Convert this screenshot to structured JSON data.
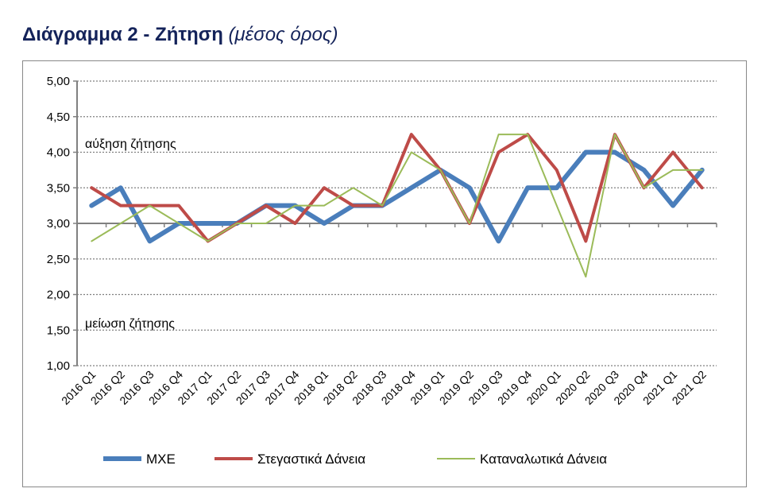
{
  "title": {
    "main": "Διάγραμμα 2 - Ζήτηση",
    "sub": "(μέσος όρος)",
    "color": "#14235a"
  },
  "chart_data": {
    "type": "line",
    "title": "Διάγραμμα 2 - Ζήτηση (μέσος όρος)",
    "categories": [
      "2016 Q1",
      "2016 Q2",
      "2016 Q3",
      "2016 Q4",
      "2017 Q1",
      "2017 Q2",
      "2017 Q3",
      "2017 Q4",
      "2018 Q1",
      "2018 Q2",
      "2018 Q3",
      "2018 Q4",
      "2019 Q1",
      "2019 Q2",
      "2019 Q3",
      "2019 Q4",
      "2020 Q1",
      "2020 Q2",
      "2020 Q3",
      "2020 Q4",
      "2021 Q1",
      "2021 Q2"
    ],
    "ylim": [
      1,
      5
    ],
    "yticks": [
      "1,00",
      "1,50",
      "2,00",
      "2,50",
      "3,00",
      "3,50",
      "4,00",
      "4,50",
      "5,00"
    ],
    "grid": true,
    "legend": "bottom",
    "annotations": [
      "αύξηση ζήτησης",
      "μείωση ζήτησης"
    ],
    "series": [
      {
        "name": "ΜΧΕ",
        "color": "#4a7ebb",
        "values": [
          3.25,
          3.5,
          2.75,
          3,
          3,
          3,
          3.25,
          3.25,
          3,
          3.25,
          3.25,
          3.5,
          3.75,
          3.5,
          2.75,
          3.5,
          3.5,
          4,
          4,
          3.75,
          3.25,
          3.75
        ]
      },
      {
        "name": "Στεγαστικά Δάνεια",
        "color": "#be4b48",
        "values": [
          3.5,
          3.25,
          3.25,
          3.25,
          2.75,
          3,
          3.25,
          3,
          3.5,
          3.25,
          3.25,
          4.25,
          3.75,
          3,
          4,
          4.25,
          3.75,
          2.75,
          4.25,
          3.5,
          4,
          3.5
        ]
      },
      {
        "name": "Καταναλωτικά Δάνεια",
        "color": "#9bbb59",
        "values": [
          2.75,
          3,
          3.25,
          3,
          2.75,
          3,
          3,
          3.25,
          3.25,
          3.5,
          3.25,
          4,
          3.75,
          3,
          4.25,
          4.25,
          3.25,
          2.25,
          4.25,
          3.5,
          3.75,
          3.75
        ]
      }
    ]
  }
}
